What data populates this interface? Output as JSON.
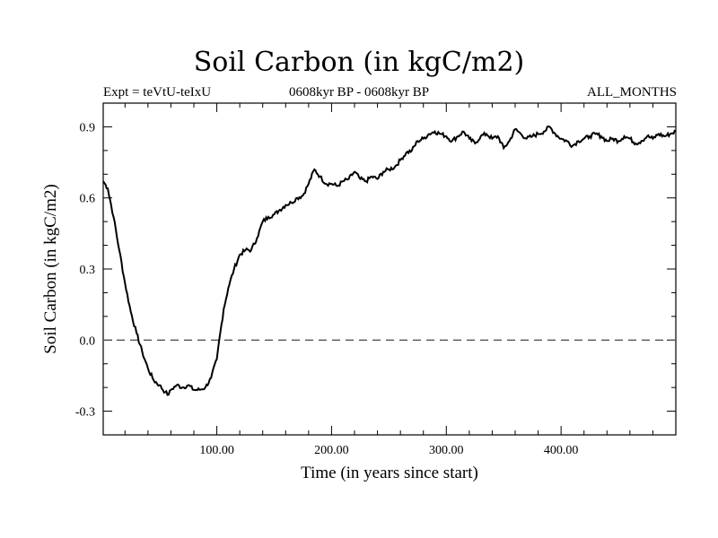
{
  "chart_data": {
    "type": "line",
    "title": "Soil Carbon (in kgC/m2)",
    "subtitle_left": "Expt = teVtU-teIxU",
    "subtitle_center": "0608kyr BP - 0608kyr BP",
    "subtitle_right": "ALL_MONTHS",
    "xlabel": "Time (in years since start)",
    "ylabel": "Soil Carbon (in kgC/m2)",
    "xlim": [
      1,
      500
    ],
    "ylim": [
      -0.4,
      1.0
    ],
    "xticks": [
      100,
      200,
      300,
      400
    ],
    "xtick_labels": [
      "100.00",
      "200.00",
      "300.00",
      "400.00"
    ],
    "yticks": [
      -0.3,
      0.0,
      0.3,
      0.6,
      0.9
    ],
    "ytick_labels": [
      "-0.3",
      "0.0",
      "0.3",
      "0.6",
      "0.9"
    ],
    "reference_line": {
      "y": 0.0,
      "style": "dashed"
    },
    "grid": false,
    "series": [
      {
        "x": [
          1,
          5,
          10,
          15,
          20,
          25,
          30,
          35,
          40,
          45,
          50,
          55,
          58,
          60,
          65,
          70,
          75,
          80,
          85,
          90,
          95,
          100,
          103,
          106,
          110,
          115,
          120,
          125,
          130,
          135,
          140,
          145,
          150,
          155,
          160,
          165,
          170,
          175,
          180,
          185,
          190,
          195,
          200,
          205,
          210,
          215,
          220,
          225,
          230,
          235,
          240,
          245,
          250,
          255,
          260,
          265,
          270,
          275,
          280,
          285,
          290,
          295,
          300,
          305,
          310,
          315,
          320,
          325,
          330,
          335,
          340,
          345,
          350,
          355,
          360,
          365,
          370,
          375,
          380,
          385,
          390,
          395,
          400,
          405,
          410,
          415,
          420,
          425,
          430,
          435,
          440,
          445,
          450,
          455,
          460,
          465,
          470,
          475,
          480,
          485,
          490,
          495,
          500
        ],
        "values": [
          0.67,
          0.64,
          0.52,
          0.38,
          0.24,
          0.12,
          0.03,
          -0.05,
          -0.12,
          -0.17,
          -0.19,
          -0.22,
          -0.23,
          -0.21,
          -0.19,
          -0.2,
          -0.19,
          -0.21,
          -0.21,
          -0.2,
          -0.16,
          -0.08,
          0.03,
          0.13,
          0.22,
          0.3,
          0.36,
          0.38,
          0.38,
          0.43,
          0.5,
          0.52,
          0.53,
          0.55,
          0.57,
          0.58,
          0.6,
          0.61,
          0.66,
          0.72,
          0.69,
          0.66,
          0.66,
          0.65,
          0.67,
          0.68,
          0.71,
          0.68,
          0.67,
          0.69,
          0.68,
          0.71,
          0.72,
          0.73,
          0.76,
          0.79,
          0.8,
          0.84,
          0.85,
          0.87,
          0.88,
          0.87,
          0.86,
          0.84,
          0.86,
          0.88,
          0.85,
          0.83,
          0.86,
          0.87,
          0.85,
          0.86,
          0.81,
          0.84,
          0.89,
          0.87,
          0.85,
          0.86,
          0.87,
          0.88,
          0.9,
          0.87,
          0.85,
          0.84,
          0.82,
          0.84,
          0.85,
          0.86,
          0.87,
          0.86,
          0.84,
          0.85,
          0.84,
          0.86,
          0.85,
          0.83,
          0.84,
          0.86,
          0.85,
          0.87,
          0.86,
          0.87,
          0.88
        ]
      }
    ]
  }
}
